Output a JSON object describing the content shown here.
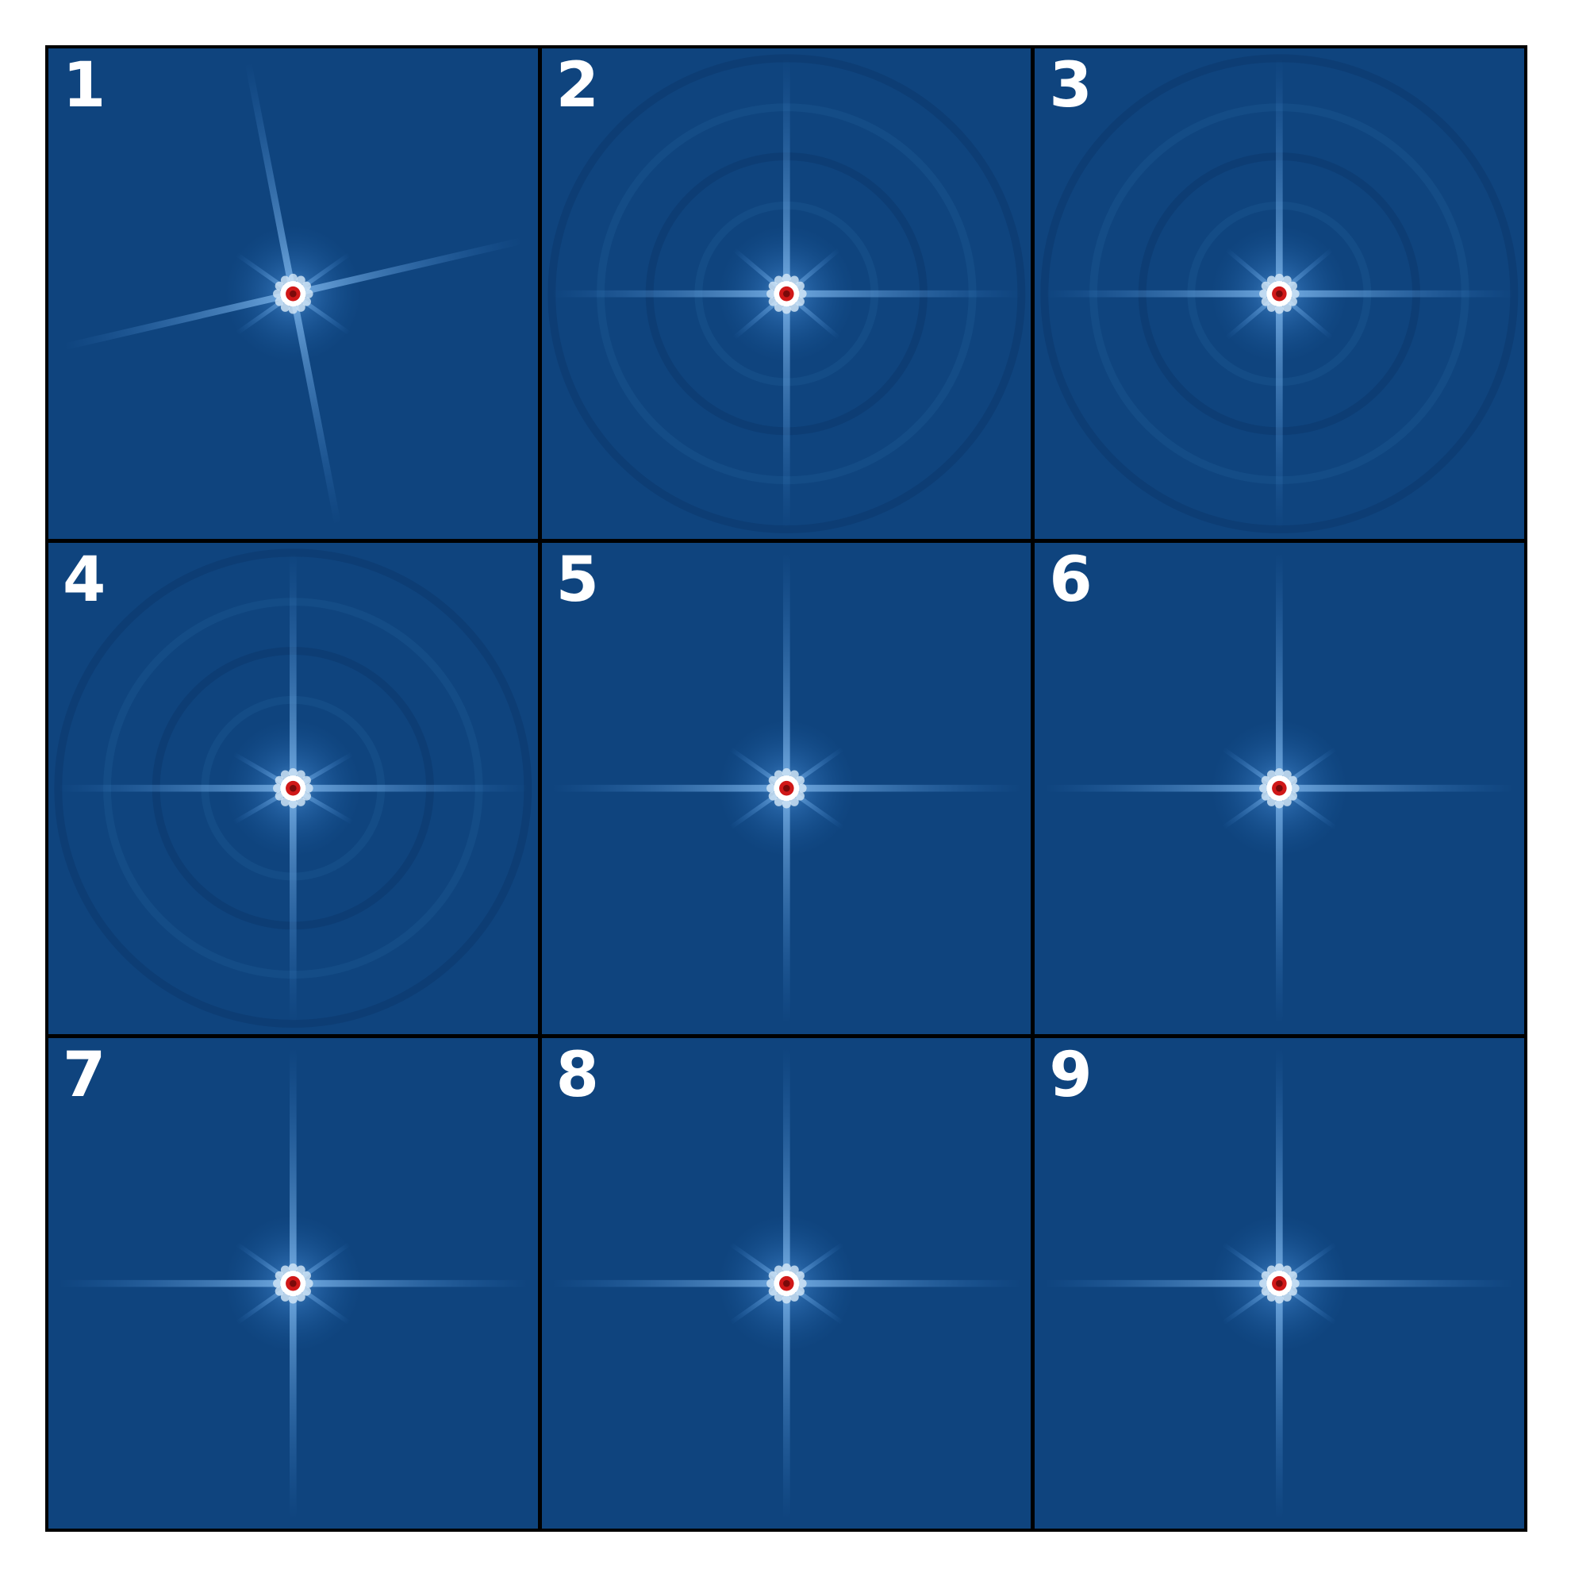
{
  "figure": {
    "background_color": "#0f447e",
    "panels": [
      {
        "label": "1",
        "spike_angles_deg": [
          -13,
          167,
          79,
          259
        ],
        "secondary_angles_deg": [
          35,
          145,
          215,
          325
        ],
        "ring_artifacts": false
      },
      {
        "label": "2",
        "spike_angles_deg": [
          0,
          180,
          90,
          270
        ],
        "secondary_angles_deg": [
          40,
          140,
          220,
          320
        ],
        "ring_artifacts": true
      },
      {
        "label": "3",
        "spike_angles_deg": [
          0,
          180,
          90,
          270
        ],
        "secondary_angles_deg": [
          40,
          140,
          220,
          320
        ],
        "ring_artifacts": true
      },
      {
        "label": "4",
        "spike_angles_deg": [
          0,
          180,
          90,
          270
        ],
        "secondary_angles_deg": [
          30,
          150,
          210,
          330
        ],
        "ring_artifacts": true
      },
      {
        "label": "5",
        "spike_angles_deg": [
          0,
          180,
          90,
          270
        ],
        "secondary_angles_deg": [
          35,
          145,
          215,
          325
        ],
        "ring_artifacts": false
      },
      {
        "label": "6",
        "spike_angles_deg": [
          0,
          180,
          90,
          270
        ],
        "secondary_angles_deg": [
          35,
          145,
          215,
          325
        ],
        "ring_artifacts": false
      },
      {
        "label": "7",
        "spike_angles_deg": [
          0,
          180,
          90,
          270
        ],
        "secondary_angles_deg": [
          35,
          145,
          215,
          325
        ],
        "ring_artifacts": false
      },
      {
        "label": "8",
        "spike_angles_deg": [
          0,
          180,
          90,
          270
        ],
        "secondary_angles_deg": [
          35,
          145,
          215,
          325
        ],
        "ring_artifacts": false
      },
      {
        "label": "9",
        "spike_angles_deg": [
          0,
          180,
          90,
          270
        ],
        "secondary_angles_deg": [
          35,
          145,
          215,
          325
        ],
        "ring_artifacts": false
      }
    ]
  }
}
